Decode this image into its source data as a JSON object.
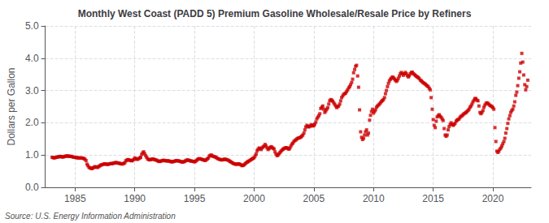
{
  "chart_data": {
    "type": "scatter",
    "title": "Monthly West Coast (PADD 5) Premium Gasoline Wholesale/Resale Price by Refiners",
    "ylabel": "Dollars per Gallon",
    "annotation": "Source: U.S. Energy Information Administration",
    "color": "#cc0000",
    "marker": "square",
    "grid": true,
    "xlim": [
      1982.5,
      2023.2
    ],
    "xticks": [
      1985,
      1990,
      1995,
      2000,
      2005,
      2010,
      2015,
      2020
    ],
    "ylim": [
      0.0,
      5.0
    ],
    "yticks": [
      {
        "value": 0.0,
        "label": "0.0"
      },
      {
        "value": 1.0,
        "label": "1.0"
      },
      {
        "value": 2.0,
        "label": "2.0"
      },
      {
        "value": 3.0,
        "label": "3.0"
      },
      {
        "value": 4.0,
        "label": "4.0"
      },
      {
        "value": 5.0,
        "label": "5.0"
      }
    ],
    "x": [
      1983.08,
      1983.17,
      1983.25,
      1983.33,
      1983.42,
      1983.5,
      1983.58,
      1983.67,
      1983.75,
      1983.83,
      1983.92,
      1984.0,
      1984.08,
      1984.17,
      1984.25,
      1984.33,
      1984.42,
      1984.5,
      1984.58,
      1984.67,
      1984.75,
      1984.83,
      1984.92,
      1985.0,
      1985.08,
      1985.17,
      1985.25,
      1985.33,
      1985.42,
      1985.5,
      1985.58,
      1985.67,
      1985.75,
      1985.83,
      1985.92,
      1986.0,
      1986.08,
      1986.17,
      1986.25,
      1986.33,
      1986.42,
      1986.5,
      1986.58,
      1986.67,
      1986.75,
      1986.83,
      1986.92,
      1987.0,
      1987.08,
      1987.17,
      1987.25,
      1987.33,
      1987.42,
      1987.5,
      1987.58,
      1987.67,
      1987.75,
      1987.83,
      1987.92,
      1988.0,
      1988.08,
      1988.17,
      1988.25,
      1988.33,
      1988.42,
      1988.5,
      1988.58,
      1988.67,
      1988.75,
      1988.83,
      1988.92,
      1989.0,
      1989.08,
      1989.17,
      1989.25,
      1989.33,
      1989.42,
      1989.5,
      1989.58,
      1989.67,
      1989.75,
      1989.83,
      1989.92,
      1990.0,
      1990.08,
      1990.17,
      1990.25,
      1990.33,
      1990.42,
      1990.5,
      1990.58,
      1990.67,
      1990.75,
      1990.83,
      1990.92,
      1991.0,
      1991.08,
      1991.17,
      1991.25,
      1991.33,
      1991.42,
      1991.5,
      1991.58,
      1991.67,
      1991.75,
      1991.83,
      1991.92,
      1992.0,
      1992.08,
      1992.17,
      1992.25,
      1992.33,
      1992.42,
      1992.5,
      1992.58,
      1992.67,
      1992.75,
      1992.83,
      1992.92,
      1993.0,
      1993.08,
      1993.17,
      1993.25,
      1993.33,
      1993.42,
      1993.5,
      1993.58,
      1993.67,
      1993.75,
      1993.83,
      1993.92,
      1994.0,
      1994.08,
      1994.17,
      1994.25,
      1994.33,
      1994.42,
      1994.5,
      1994.58,
      1994.67,
      1994.75,
      1994.83,
      1994.92,
      1995.0,
      1995.08,
      1995.17,
      1995.25,
      1995.33,
      1995.42,
      1995.5,
      1995.58,
      1995.67,
      1995.75,
      1995.83,
      1995.92,
      1996.0,
      1996.08,
      1996.17,
      1996.25,
      1996.33,
      1996.42,
      1996.5,
      1996.58,
      1996.67,
      1996.75,
      1996.83,
      1996.92,
      1997.0,
      1997.08,
      1997.17,
      1997.25,
      1997.33,
      1997.42,
      1997.5,
      1997.58,
      1997.67,
      1997.75,
      1997.83,
      1997.92,
      1998.0,
      1998.08,
      1998.17,
      1998.25,
      1998.33,
      1998.42,
      1998.5,
      1998.58,
      1998.67,
      1998.75,
      1998.83,
      1998.92,
      1999.0,
      1999.08,
      1999.17,
      1999.25,
      1999.33,
      1999.42,
      1999.5,
      1999.58,
      1999.67,
      1999.75,
      1999.83,
      1999.92,
      2000.0,
      2000.08,
      2000.17,
      2000.25,
      2000.33,
      2000.42,
      2000.5,
      2000.58,
      2000.67,
      2000.75,
      2000.83,
      2000.92,
      2001.0,
      2001.08,
      2001.17,
      2001.25,
      2001.33,
      2001.42,
      2001.5,
      2001.58,
      2001.67,
      2001.75,
      2001.83,
      2001.92,
      2002.0,
      2002.08,
      2002.17,
      2002.25,
      2002.33,
      2002.42,
      2002.5,
      2002.58,
      2002.67,
      2002.75,
      2002.83,
      2002.92,
      2003.0,
      2003.08,
      2003.17,
      2003.25,
      2003.33,
      2003.42,
      2003.5,
      2003.58,
      2003.67,
      2003.75,
      2003.83,
      2003.92,
      2004.0,
      2004.08,
      2004.17,
      2004.25,
      2004.33,
      2004.42,
      2004.5,
      2004.58,
      2004.67,
      2004.75,
      2004.83,
      2004.92,
      2005.0,
      2005.08,
      2005.17,
      2005.25,
      2005.33,
      2005.42,
      2005.5,
      2005.58,
      2005.67,
      2005.75,
      2005.83,
      2005.92,
      2006.0,
      2006.08,
      2006.17,
      2006.25,
      2006.33,
      2006.42,
      2006.5,
      2006.58,
      2006.67,
      2006.75,
      2006.83,
      2006.92,
      2007.0,
      2007.08,
      2007.17,
      2007.25,
      2007.33,
      2007.42,
      2007.5,
      2007.58,
      2007.67,
      2007.75,
      2007.83,
      2007.92,
      2008.0,
      2008.08,
      2008.17,
      2008.25,
      2008.33,
      2008.42,
      2008.5,
      2008.58,
      2008.67,
      2008.75,
      2008.83,
      2008.92,
      2009.0,
      2009.08,
      2009.17,
      2009.25,
      2009.33,
      2009.42,
      2009.5,
      2009.58,
      2009.67,
      2009.75,
      2009.83,
      2009.92,
      2010.0,
      2010.08,
      2010.17,
      2010.25,
      2010.33,
      2010.42,
      2010.5,
      2010.58,
      2010.67,
      2010.75,
      2010.83,
      2010.92,
      2011.0,
      2011.08,
      2011.17,
      2011.25,
      2011.33,
      2011.42,
      2011.5,
      2011.58,
      2011.67,
      2011.75,
      2011.83,
      2011.92,
      2012.0,
      2012.08,
      2012.17,
      2012.25,
      2012.33,
      2012.42,
      2012.5,
      2012.58,
      2012.67,
      2012.75,
      2012.83,
      2012.92,
      2013.0,
      2013.08,
      2013.17,
      2013.25,
      2013.33,
      2013.42,
      2013.5,
      2013.58,
      2013.67,
      2013.75,
      2013.83,
      2013.92,
      2014.0,
      2014.08,
      2014.17,
      2014.25,
      2014.33,
      2014.42,
      2014.5,
      2014.58,
      2014.67,
      2014.75,
      2014.83,
      2014.92,
      2015.0,
      2015.08,
      2015.17,
      2015.25,
      2015.33,
      2015.42,
      2015.5,
      2015.58,
      2015.67,
      2015.75,
      2015.83,
      2015.92,
      2016.0,
      2016.08,
      2016.17,
      2016.25,
      2016.33,
      2016.42,
      2016.5,
      2016.58,
      2016.67,
      2016.75,
      2016.83,
      2016.92,
      2017.0,
      2017.08,
      2017.17,
      2017.25,
      2017.33,
      2017.42,
      2017.5,
      2017.58,
      2017.67,
      2017.75,
      2017.83,
      2017.92,
      2018.0,
      2018.08,
      2018.17,
      2018.25,
      2018.33,
      2018.42,
      2018.5,
      2018.58,
      2018.67,
      2018.75,
      2018.83,
      2018.92,
      2019.0,
      2019.08,
      2019.17,
      2019.25,
      2019.33,
      2019.42,
      2019.5,
      2019.58,
      2019.67,
      2019.75,
      2019.83,
      2019.92,
      2020.0,
      2020.08,
      2020.17,
      2020.25,
      2020.33,
      2020.42,
      2020.5,
      2020.58,
      2020.67,
      2020.75,
      2020.83,
      2020.92,
      2021.0,
      2021.08,
      2021.17,
      2021.25,
      2021.33,
      2021.42,
      2021.5,
      2021.58,
      2021.67,
      2021.75,
      2021.83,
      2021.92,
      2022.0,
      2022.08,
      2022.17,
      2022.25,
      2022.33,
      2022.42,
      2022.5,
      2022.58,
      2022.67,
      2022.75,
      2022.83,
      2022.92
    ],
    "values": [
      0.93,
      0.92,
      0.91,
      0.92,
      0.93,
      0.94,
      0.94,
      0.95,
      0.96,
      0.95,
      0.94,
      0.94,
      0.95,
      0.96,
      0.97,
      0.97,
      0.97,
      0.96,
      0.96,
      0.96,
      0.95,
      0.94,
      0.93,
      0.93,
      0.92,
      0.92,
      0.91,
      0.91,
      0.91,
      0.91,
      0.91,
      0.9,
      0.89,
      0.87,
      0.83,
      0.72,
      0.67,
      0.62,
      0.6,
      0.59,
      0.58,
      0.6,
      0.62,
      0.64,
      0.63,
      0.62,
      0.62,
      0.65,
      0.67,
      0.69,
      0.7,
      0.71,
      0.72,
      0.73,
      0.72,
      0.71,
      0.71,
      0.72,
      0.73,
      0.74,
      0.73,
      0.74,
      0.75,
      0.76,
      0.77,
      0.76,
      0.75,
      0.75,
      0.74,
      0.73,
      0.72,
      0.73,
      0.74,
      0.76,
      0.82,
      0.84,
      0.86,
      0.85,
      0.84,
      0.83,
      0.82,
      0.84,
      0.86,
      0.91,
      0.89,
      0.87,
      0.87,
      0.89,
      0.91,
      0.93,
      1.02,
      1.07,
      1.1,
      1.04,
      0.98,
      0.93,
      0.88,
      0.86,
      0.85,
      0.86,
      0.87,
      0.88,
      0.87,
      0.86,
      0.85,
      0.84,
      0.82,
      0.81,
      0.8,
      0.81,
      0.82,
      0.83,
      0.84,
      0.83,
      0.82,
      0.82,
      0.82,
      0.82,
      0.81,
      0.8,
      0.79,
      0.79,
      0.8,
      0.81,
      0.82,
      0.83,
      0.82,
      0.82,
      0.81,
      0.8,
      0.79,
      0.78,
      0.79,
      0.8,
      0.82,
      0.84,
      0.85,
      0.84,
      0.83,
      0.82,
      0.81,
      0.81,
      0.8,
      0.79,
      0.8,
      0.83,
      0.86,
      0.88,
      0.89,
      0.88,
      0.87,
      0.86,
      0.85,
      0.84,
      0.83,
      0.86,
      0.88,
      0.91,
      0.97,
      0.99,
      1.0,
      0.97,
      0.96,
      0.95,
      0.94,
      0.92,
      0.9,
      0.88,
      0.87,
      0.86,
      0.85,
      0.85,
      0.86,
      0.87,
      0.87,
      0.86,
      0.85,
      0.84,
      0.82,
      0.8,
      0.78,
      0.76,
      0.74,
      0.73,
      0.72,
      0.71,
      0.72,
      0.73,
      0.72,
      0.71,
      0.69,
      0.67,
      0.68,
      0.7,
      0.73,
      0.76,
      0.78,
      0.8,
      0.82,
      0.84,
      0.86,
      0.88,
      0.9,
      0.92,
      0.97,
      1.03,
      1.13,
      1.18,
      1.22,
      1.2,
      1.17,
      1.22,
      1.25,
      1.28,
      1.33,
      1.28,
      1.22,
      1.17,
      1.2,
      1.23,
      1.26,
      1.24,
      1.21,
      1.19,
      1.1,
      1.03,
      0.98,
      1.0,
      1.04,
      1.08,
      1.12,
      1.15,
      1.18,
      1.2,
      1.22,
      1.23,
      1.22,
      1.2,
      1.18,
      1.22,
      1.28,
      1.34,
      1.37,
      1.42,
      1.45,
      1.47,
      1.5,
      1.52,
      1.53,
      1.54,
      1.56,
      1.59,
      1.62,
      1.68,
      1.78,
      1.87,
      1.92,
      1.89,
      1.87,
      1.89,
      1.92,
      1.94,
      1.9,
      1.91,
      1.96,
      2.02,
      2.12,
      2.17,
      2.22,
      2.28,
      2.44,
      2.48,
      2.52,
      2.42,
      2.32,
      2.37,
      2.42,
      2.47,
      2.58,
      2.68,
      2.72,
      2.7,
      2.67,
      2.62,
      2.57,
      2.52,
      2.47,
      2.5,
      2.52,
      2.58,
      2.68,
      2.78,
      2.83,
      2.88,
      2.9,
      2.92,
      2.97,
      3.02,
      3.08,
      3.12,
      3.18,
      3.25,
      3.35,
      3.55,
      3.65,
      3.75,
      3.78,
      3.45,
      3.1,
      2.4,
      1.72,
      1.55,
      1.48,
      1.52,
      1.62,
      1.72,
      1.78,
      1.62,
      1.68,
      2.08,
      2.23,
      2.35,
      2.42,
      2.3,
      2.35,
      2.4,
      2.48,
      2.52,
      2.55,
      2.58,
      2.62,
      2.66,
      2.69,
      2.72,
      2.78,
      2.9,
      3.0,
      3.12,
      3.22,
      3.3,
      3.35,
      3.38,
      3.42,
      3.4,
      3.36,
      3.32,
      3.28,
      3.32,
      3.38,
      3.45,
      3.52,
      3.56,
      3.52,
      3.47,
      3.52,
      3.56,
      3.52,
      3.46,
      3.42,
      3.46,
      3.52,
      3.56,
      3.57,
      3.52,
      3.5,
      3.47,
      3.44,
      3.42,
      3.4,
      3.37,
      3.32,
      3.3,
      3.27,
      3.24,
      3.22,
      3.2,
      3.17,
      3.14,
      3.12,
      3.07,
      3.02,
      2.78,
      2.42,
      2.1,
      1.92,
      1.85,
      2.05,
      2.18,
      2.22,
      2.25,
      2.2,
      2.17,
      2.12,
      2.07,
      1.82,
      1.62,
      1.58,
      1.62,
      1.78,
      1.88,
      1.95,
      2.0,
      1.95,
      1.92,
      1.95,
      1.98,
      2.05,
      2.08,
      2.1,
      2.12,
      2.17,
      2.2,
      2.22,
      2.25,
      2.28,
      2.3,
      2.32,
      2.35,
      2.38,
      2.42,
      2.48,
      2.52,
      2.58,
      2.65,
      2.7,
      2.75,
      2.75,
      2.7,
      2.68,
      2.52,
      2.32,
      2.28,
      2.32,
      2.38,
      2.48,
      2.55,
      2.6,
      2.62,
      2.6,
      2.57,
      2.54,
      2.52,
      2.5,
      2.47,
      2.42,
      1.85,
      1.42,
      1.12,
      1.08,
      1.12,
      1.18,
      1.22,
      1.28,
      1.35,
      1.42,
      1.52,
      1.68,
      1.82,
      1.98,
      2.12,
      2.22,
      2.32,
      2.38,
      2.42,
      2.52,
      2.65,
      2.85,
      2.95,
      3.15,
      3.38,
      3.58,
      3.85,
      4.15,
      3.88,
      3.48,
      3.18,
      3.02,
      3.12,
      3.32
    ]
  }
}
